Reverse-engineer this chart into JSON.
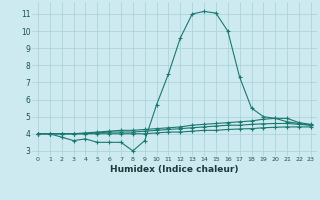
{
  "xlabel": "Humidex (Indice chaleur)",
  "bg_color": "#cdeaf0",
  "grid_color": "#a8d0d8",
  "line_color": "#1a7870",
  "xlim": [
    -0.5,
    23.5
  ],
  "ylim": [
    2.7,
    11.7
  ],
  "xticks": [
    0,
    1,
    2,
    3,
    4,
    5,
    6,
    7,
    8,
    9,
    10,
    11,
    12,
    13,
    14,
    15,
    16,
    17,
    18,
    19,
    20,
    21,
    22,
    23
  ],
  "yticks": [
    3,
    4,
    5,
    6,
    7,
    8,
    9,
    10,
    11
  ],
  "series": [
    {
      "x": [
        0,
        1,
        2,
        3,
        4,
        5,
        6,
        7,
        8,
        9,
        10,
        11,
        12,
        13,
        14,
        15,
        16,
        17,
        18,
        19,
        20,
        21,
        22,
        23
      ],
      "y": [
        4.0,
        4.0,
        3.8,
        3.6,
        3.7,
        3.5,
        3.5,
        3.5,
        3.0,
        3.6,
        5.7,
        7.5,
        9.6,
        11.0,
        11.15,
        11.05,
        10.0,
        7.3,
        5.5,
        5.0,
        4.9,
        4.7,
        4.6,
        4.5
      ]
    },
    {
      "x": [
        0,
        1,
        2,
        3,
        4,
        5,
        6,
        7,
        8,
        9,
        10,
        11,
        12,
        13,
        14,
        15,
        16,
        17,
        18,
        19,
        20,
        21,
        22,
        23
      ],
      "y": [
        4.0,
        4.0,
        4.0,
        4.0,
        4.05,
        4.1,
        4.15,
        4.2,
        4.2,
        4.25,
        4.3,
        4.35,
        4.4,
        4.5,
        4.55,
        4.6,
        4.65,
        4.7,
        4.75,
        4.85,
        4.9,
        4.9,
        4.65,
        4.55
      ]
    },
    {
      "x": [
        0,
        1,
        2,
        3,
        4,
        5,
        6,
        7,
        8,
        9,
        10,
        11,
        12,
        13,
        14,
        15,
        16,
        17,
        18,
        19,
        20,
        21,
        22,
        23
      ],
      "y": [
        4.0,
        4.0,
        4.0,
        4.0,
        4.0,
        4.05,
        4.1,
        4.1,
        4.1,
        4.15,
        4.2,
        4.25,
        4.3,
        4.35,
        4.4,
        4.45,
        4.5,
        4.5,
        4.55,
        4.58,
        4.6,
        4.6,
        4.55,
        4.5
      ]
    },
    {
      "x": [
        0,
        1,
        2,
        3,
        4,
        5,
        6,
        7,
        8,
        9,
        10,
        11,
        12,
        13,
        14,
        15,
        16,
        17,
        18,
        19,
        20,
        21,
        22,
        23
      ],
      "y": [
        4.0,
        4.0,
        4.0,
        4.0,
        4.0,
        4.0,
        4.0,
        4.0,
        4.0,
        4.0,
        4.05,
        4.1,
        4.1,
        4.15,
        4.2,
        4.2,
        4.25,
        4.28,
        4.3,
        4.35,
        4.38,
        4.4,
        4.4,
        4.4
      ]
    }
  ]
}
